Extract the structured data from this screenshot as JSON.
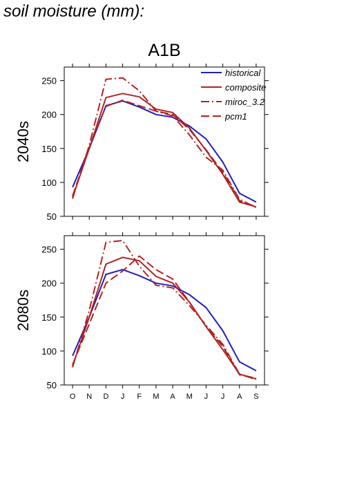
{
  "page_title": "soil moisture (mm):",
  "colors": {
    "historical": "#1f1fbf",
    "model": "#b22222",
    "axis": "#000000"
  },
  "chart_data": [
    {
      "type": "line",
      "scenario": "A1B",
      "row_label": "2040s",
      "categories": [
        "O",
        "N",
        "D",
        "J",
        "F",
        "M",
        "A",
        "M",
        "J",
        "J",
        "A",
        "S"
      ],
      "ylim": [
        50,
        270
      ],
      "yticks": [
        50,
        100,
        150,
        200,
        250
      ],
      "grid": false,
      "legend_position": "top-right",
      "series": [
        {
          "name": "historical",
          "style": "solid",
          "values": [
            93,
            150,
            213,
            220,
            211,
            200,
            196,
            183,
            164,
            130,
            84,
            71
          ]
        },
        {
          "name": "composite",
          "style": "solid",
          "values": [
            78,
            150,
            225,
            231,
            226,
            208,
            203,
            180,
            147,
            112,
            71,
            64
          ]
        },
        {
          "name": "miroc_3.2",
          "style": "dashdot",
          "values": [
            76,
            155,
            252,
            254,
            235,
            205,
            198,
            170,
            137,
            118,
            75,
            63
          ]
        },
        {
          "name": "pcm1",
          "style": "dashed",
          "values": [
            80,
            152,
            212,
            221,
            213,
            205,
            200,
            178,
            148,
            115,
            73,
            64
          ]
        }
      ]
    },
    {
      "type": "line",
      "scenario": "",
      "row_label": "2080s",
      "categories": [
        "O",
        "N",
        "D",
        "J",
        "F",
        "M",
        "A",
        "M",
        "J",
        "J",
        "A",
        "S"
      ],
      "ylim": [
        50,
        270
      ],
      "yticks": [
        50,
        100,
        150,
        200,
        250
      ],
      "grid": false,
      "series": [
        {
          "name": "historical",
          "style": "solid",
          "values": [
            93,
            150,
            213,
            220,
            211,
            200,
            196,
            183,
            164,
            130,
            84,
            71
          ]
        },
        {
          "name": "composite",
          "style": "solid",
          "values": [
            78,
            150,
            228,
            238,
            233,
            210,
            200,
            172,
            136,
            102,
            66,
            59
          ]
        },
        {
          "name": "miroc_3.2",
          "style": "dashdot",
          "values": [
            76,
            160,
            260,
            263,
            225,
            197,
            193,
            167,
            138,
            110,
            66,
            58
          ]
        },
        {
          "name": "pcm1",
          "style": "dashed",
          "values": [
            80,
            140,
            200,
            218,
            240,
            220,
            206,
            172,
            136,
            107,
            65,
            60
          ]
        }
      ]
    }
  ]
}
